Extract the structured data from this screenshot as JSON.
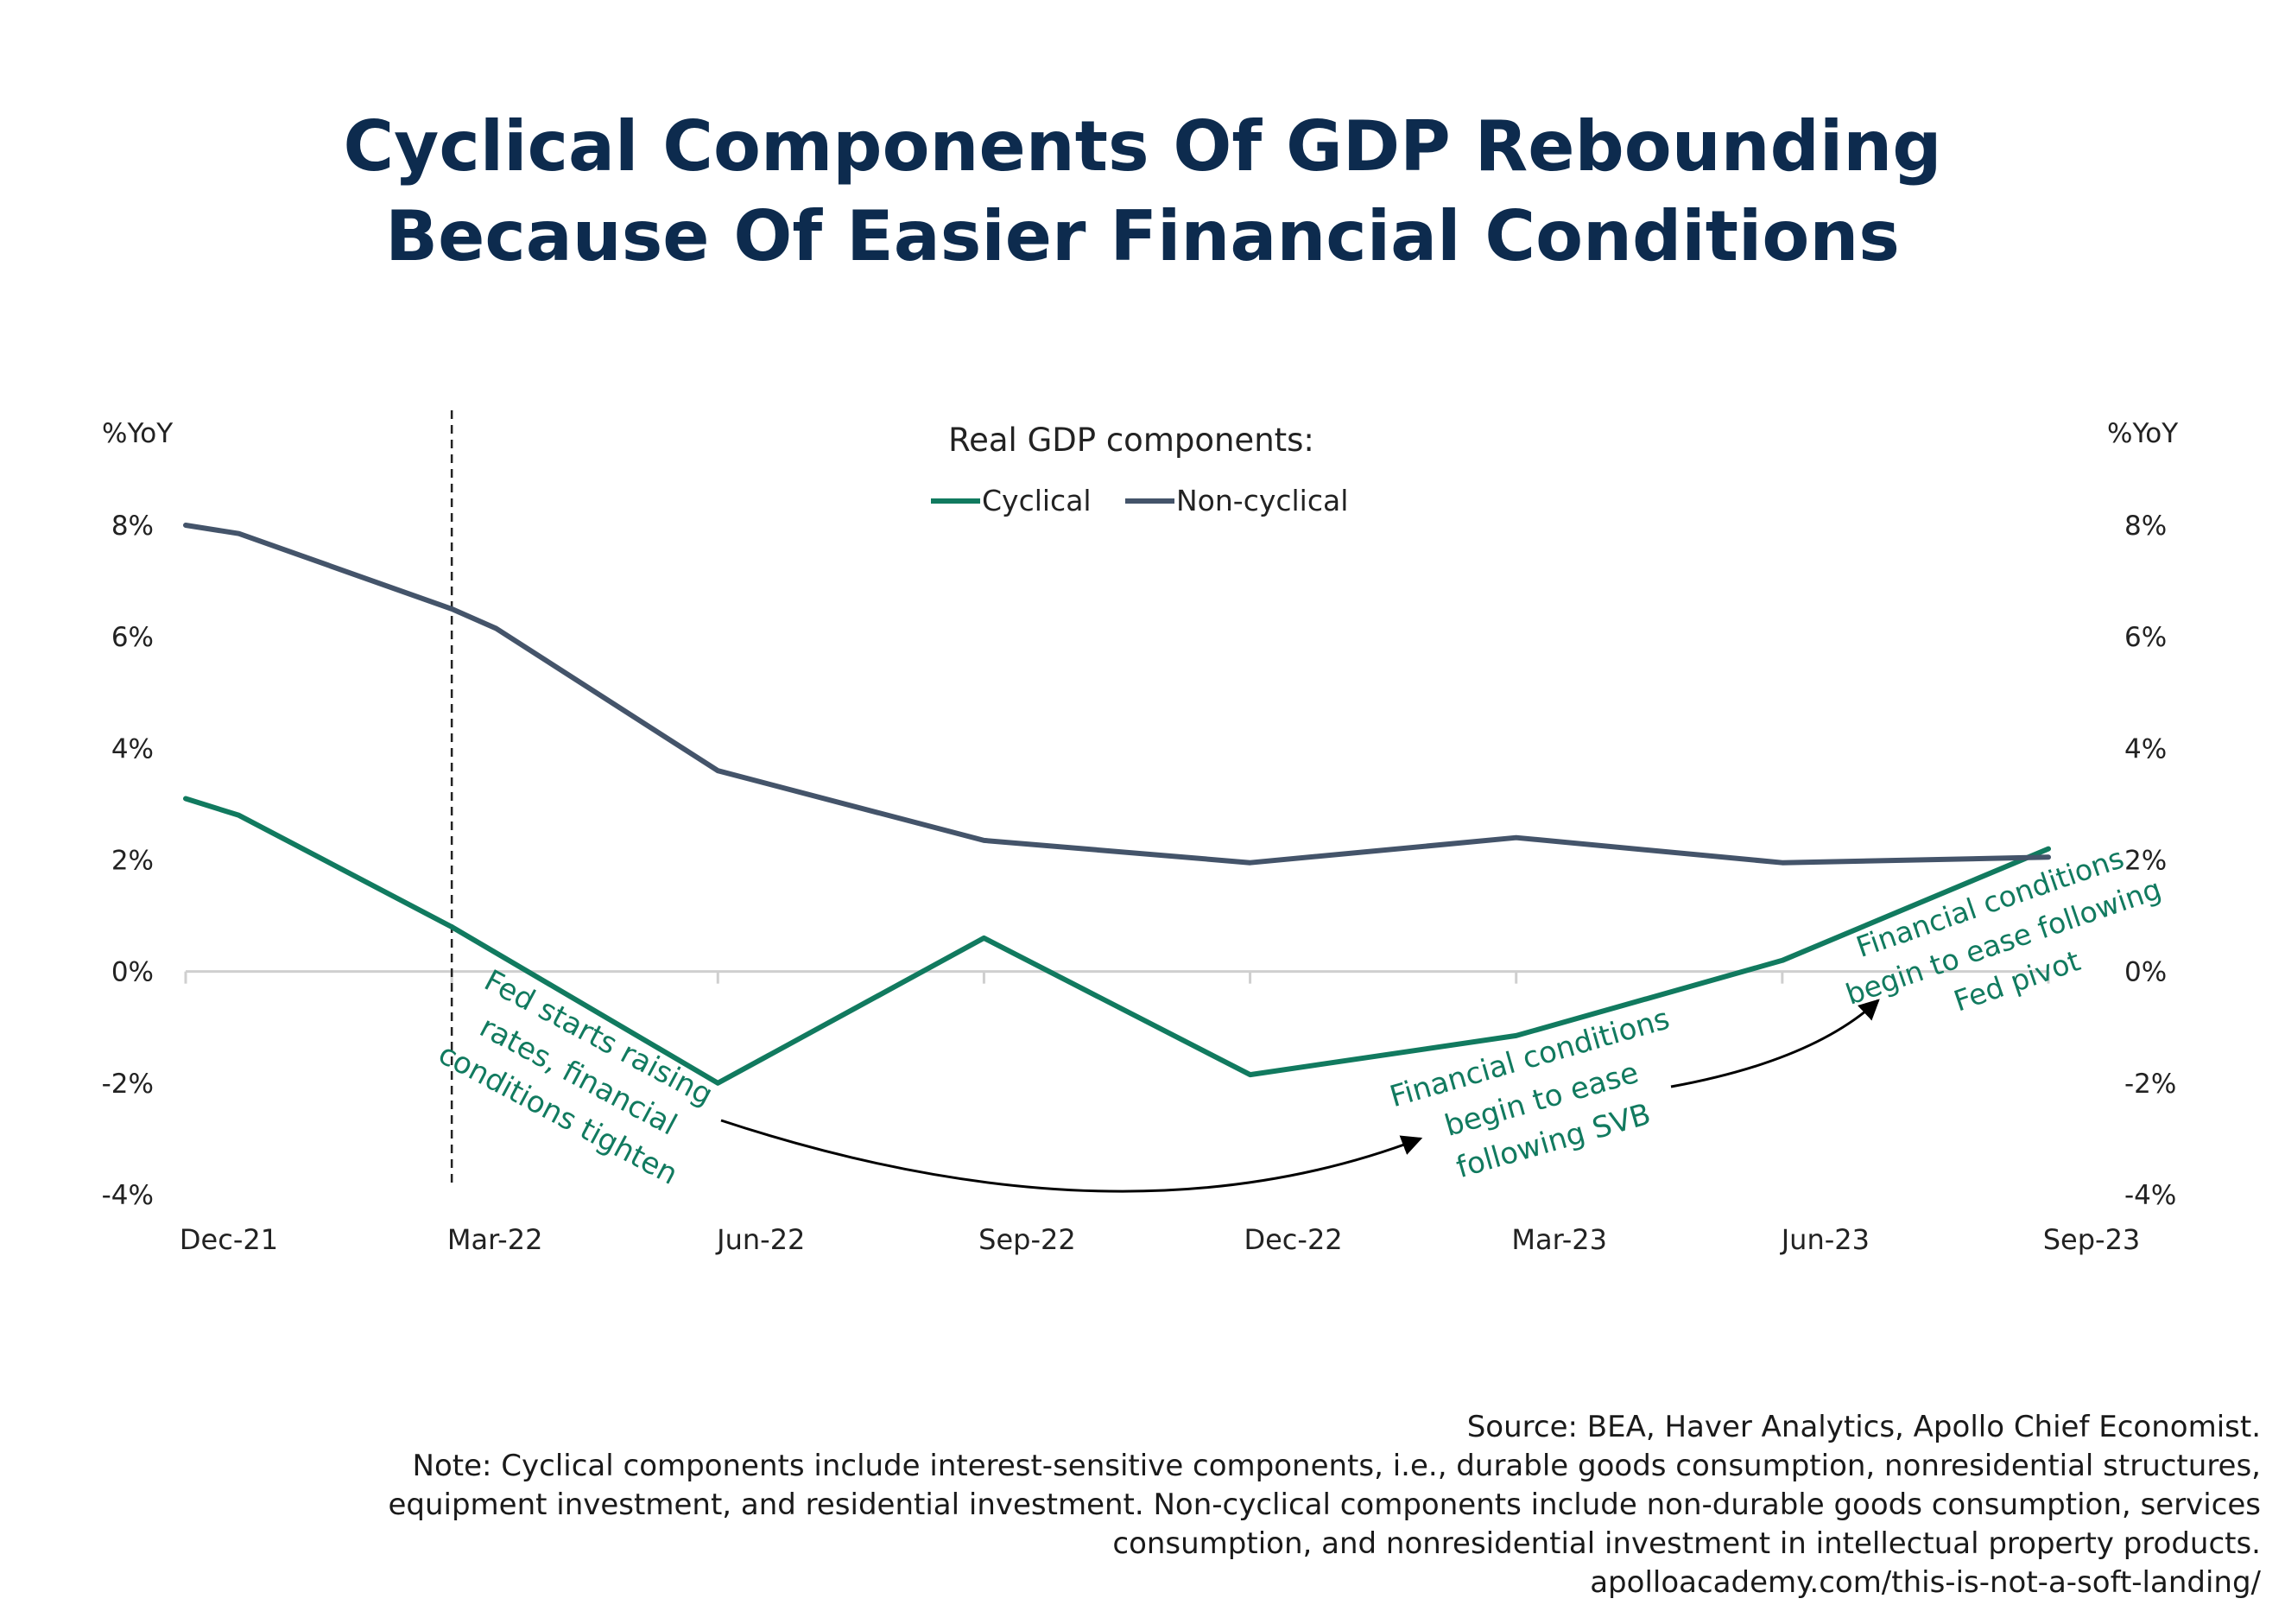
{
  "title_lines": [
    "Cyclical Components Of GDP Rebounding",
    "Because Of Easier Financial Conditions"
  ],
  "footer": {
    "source": "Source: BEA, Haver Analytics, Apollo Chief Economist.",
    "note_lines": [
      "Note: Cyclical components include interest-sensitive components, i.e., durable goods consumption, nonresidential structures,",
      "equipment investment, and residential investment. Non-cyclical components include non-durable goods consumption, services",
      "consumption, and nonresidential investment in intellectual property products."
    ],
    "url": "apolloacademy.com/this-is-not-a-soft-landing/"
  },
  "colors": {
    "cyclical": "#117a5f",
    "noncyclical": "#44546a",
    "annotation": "#117a5f",
    "title": "#0d2b4e"
  },
  "chart_data": {
    "type": "line",
    "legend_title": "Real GDP components:",
    "legend_position": "top-center",
    "y_axis_label_left": "%YoY",
    "y_axis_label_right": "%YoY",
    "ylim": [
      -4,
      8
    ],
    "y_ticks": [
      8,
      6,
      4,
      2,
      0,
      -2,
      -4
    ],
    "y_tick_labels": [
      "8%",
      "6%",
      "4%",
      "2%",
      "0%",
      "-2%",
      "-4%"
    ],
    "x_tick_labels": [
      "Dec-21",
      "Mar-22",
      "Jun-22",
      "Sep-22",
      "Dec-22",
      "Mar-23",
      "Jun-23",
      "Sep-23"
    ],
    "x_tick_indices": [
      0,
      3,
      6,
      9,
      12,
      15,
      18,
      21
    ],
    "x_range_months": [
      0,
      21
    ],
    "grid": false,
    "vertical_marker": {
      "month": 3,
      "style": "dashed"
    },
    "series": [
      {
        "name": "Cyclical",
        "points": [
          [
            0,
            3.1
          ],
          [
            0.6,
            2.8
          ],
          [
            3,
            0.8
          ],
          [
            6,
            -2.0
          ],
          [
            9,
            0.6
          ],
          [
            12,
            -1.85
          ],
          [
            15,
            -1.15
          ],
          [
            18,
            0.2
          ],
          [
            21,
            2.2
          ]
        ]
      },
      {
        "name": "Non-cyclical",
        "points": [
          [
            0,
            8.0
          ],
          [
            0.6,
            7.85
          ],
          [
            3,
            6.5
          ],
          [
            3.5,
            6.15
          ],
          [
            6,
            3.6
          ],
          [
            9,
            2.35
          ],
          [
            12,
            1.95
          ],
          [
            15,
            2.4
          ],
          [
            18,
            1.95
          ],
          [
            21,
            2.05
          ]
        ]
      }
    ],
    "annotations": [
      {
        "lines": [
          "Fed starts raising",
          "rates, financial",
          "conditions tighten"
        ]
      },
      {
        "lines": [
          "Financial conditions",
          "begin to ease",
          "following SVB"
        ]
      },
      {
        "lines": [
          "Financial conditions",
          "begin to ease following",
          "Fed pivot"
        ]
      }
    ]
  }
}
